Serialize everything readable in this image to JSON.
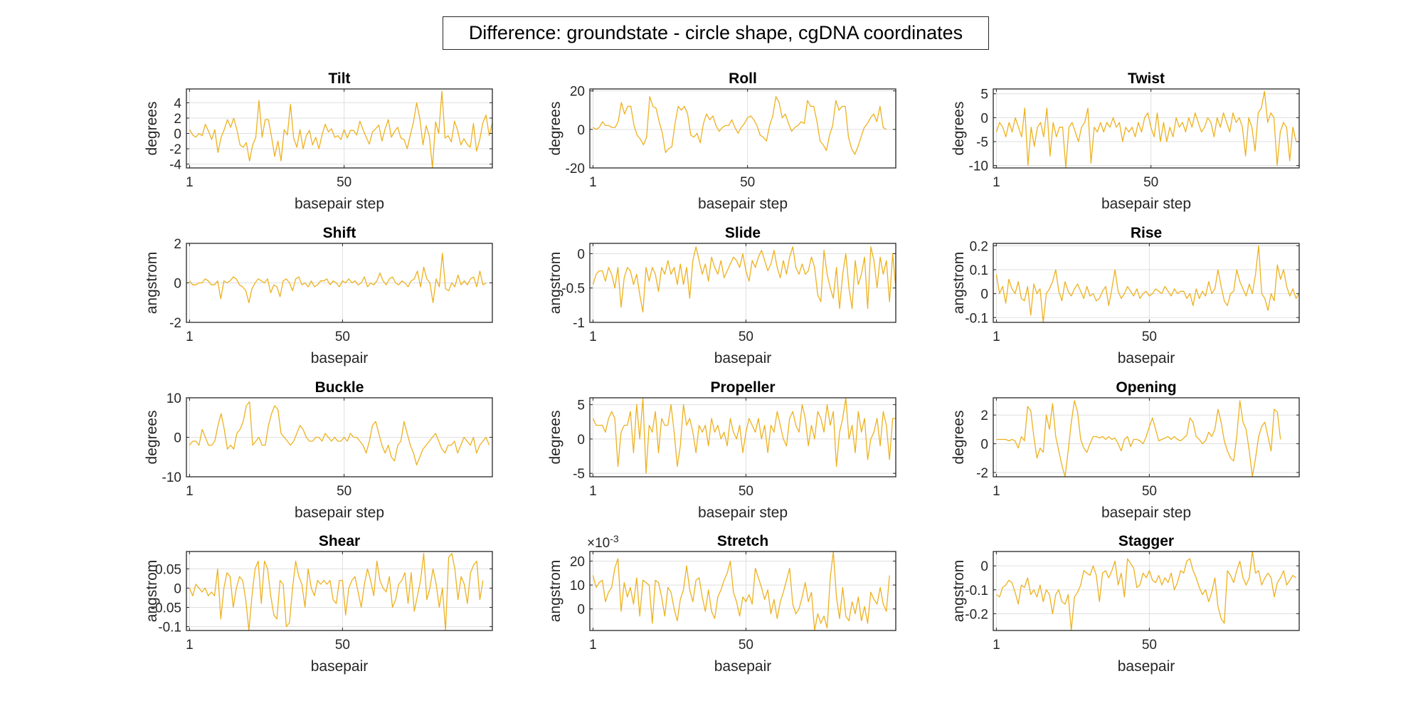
{
  "figure": {
    "title": "Difference: groundstate - circle shape, cgDNA coordinates",
    "line_color": "#EDB120",
    "grid_color": "#dfdfdf"
  },
  "chart_data": [
    {
      "type": "line",
      "title": "Tilt",
      "xlabel": "basepair step",
      "ylabel": "degrees",
      "xlim": [
        0,
        97
      ],
      "ylim": [
        -4.5,
        5.8
      ],
      "xticks": [
        "1",
        "50"
      ],
      "yticks": [
        "-4",
        "-2",
        "0",
        "2",
        "4"
      ],
      "y": [
        0.5,
        -0.2,
        -0.5,
        0.0,
        -0.3,
        1.2,
        0.3,
        -0.8,
        0.5,
        -2.5,
        -0.5,
        0.5,
        1.8,
        0.8,
        2.0,
        0.5,
        -1.5,
        -1.8,
        -1.2,
        -3.6,
        -1.5,
        -0.5,
        4.3,
        -0.5,
        1.8,
        1.8,
        -0.5,
        -3.0,
        -1.0,
        -3.6,
        0.5,
        -0.2,
        3.8,
        -0.6,
        -1.8,
        0.5,
        -2.0,
        -0.3,
        0.4,
        -1.5,
        -0.5,
        -2.0,
        -0.2,
        1.2,
        0.2,
        0.6,
        -0.5,
        -0.3,
        -0.8,
        0.5,
        -0.6,
        0.4,
        0.4,
        -0.2,
        1.6,
        0.5,
        -0.5,
        -1.4,
        0.2,
        0.6,
        1.1,
        -1.0,
        0.6,
        1.8,
        -0.5,
        0.3,
        0.8,
        -0.6,
        -0.8,
        -2.0,
        -0.2,
        1.5,
        4.0,
        2.0,
        -1.5,
        1.0,
        -0.3,
        -4.5,
        1.5,
        0.0,
        5.5,
        -0.6,
        -0.3,
        -1.1,
        1.6,
        0.4,
        -1.5,
        -0.7,
        -1.4,
        -1.8,
        1.3,
        -2.3,
        -0.8,
        1.4,
        2.4,
        -0.3,
        1.4
      ]
    },
    {
      "type": "line",
      "title": "Roll",
      "xlabel": "basepair step",
      "ylabel": "degrees",
      "xlim": [
        0,
        97
      ],
      "ylim": [
        -20,
        21
      ],
      "xticks": [
        "1",
        "50"
      ],
      "yticks": [
        "-20",
        "0",
        "20"
      ],
      "y": [
        1,
        0,
        1,
        4,
        2,
        2,
        1,
        1,
        4,
        14,
        8,
        12,
        12,
        2,
        -3,
        -5,
        -8,
        -4,
        17,
        12,
        11,
        4,
        -2,
        -12,
        -10,
        -9,
        3,
        12,
        10,
        12,
        8,
        -3,
        -4,
        -2,
        -7,
        3,
        8,
        5,
        7,
        2,
        -1,
        1,
        2,
        2,
        5,
        1,
        -2,
        1,
        3,
        6,
        7,
        5,
        2,
        -3,
        -4,
        -6,
        2,
        7,
        17,
        14,
        6,
        8,
        3,
        -1,
        1,
        2,
        4,
        3,
        15,
        12,
        12,
        4,
        -6,
        -8,
        -11,
        -3,
        2,
        15,
        10,
        12,
        12,
        -4,
        -10,
        -13,
        -9,
        -4,
        1,
        3,
        6,
        8,
        4,
        12,
        1,
        0
      ]
    },
    {
      "type": "line",
      "title": "Twist",
      "xlabel": "basepair step",
      "ylabel": "degrees",
      "xlim": [
        0,
        97
      ],
      "ylim": [
        -10.5,
        6.0
      ],
      "xticks": [
        "1",
        "50"
      ],
      "yticks": [
        "-10",
        "-5",
        "0",
        "5"
      ],
      "y": [
        -3,
        -1,
        -2,
        -4,
        -1,
        -3,
        0,
        -2,
        -4,
        2,
        -10,
        -2,
        -6,
        -2,
        -1,
        -4,
        2,
        -8,
        -1,
        -4,
        -2,
        -2,
        -10.5,
        -2,
        -1,
        -3,
        -5,
        -2,
        -1,
        2,
        -9.5,
        -2,
        -3,
        -1,
        -3,
        -1,
        -2,
        0,
        -2,
        -1,
        -5,
        -2,
        -3,
        -2,
        -4,
        -1,
        -3,
        0,
        1,
        -2,
        -4,
        1,
        -5,
        -1,
        -5,
        -2,
        -4,
        0,
        -2,
        -1,
        -3,
        0,
        -2,
        1,
        -1,
        -3,
        -2,
        0,
        -1,
        -4,
        0,
        -2,
        1,
        -1,
        -3,
        1,
        -1,
        0,
        -2,
        -8,
        0,
        -2,
        -7,
        1,
        2,
        5.5,
        -1,
        1,
        0,
        -10,
        -3,
        -1,
        -2,
        -9,
        -2,
        -5
      ]
    },
    {
      "type": "line",
      "title": "Shift",
      "xlabel": "basepair",
      "ylabel": "angstrom",
      "xlim": [
        0,
        98
      ],
      "ylim": [
        -2,
        2
      ],
      "xticks": [
        "1",
        "50"
      ],
      "yticks": [
        "-2",
        "0",
        "2"
      ],
      "y": [
        0.1,
        -0.1,
        -0.1,
        0.0,
        0.0,
        0.2,
        0.1,
        -0.1,
        -0.1,
        0.1,
        -0.8,
        0.1,
        0.0,
        0.1,
        0.3,
        0.2,
        -0.1,
        -0.2,
        -0.4,
        -1.0,
        -0.3,
        0.0,
        0.2,
        0.1,
        0.0,
        0.2,
        -0.5,
        -0.1,
        -0.2,
        -0.7,
        0.1,
        0.2,
        0.0,
        -0.4,
        0.2,
        0.3,
        -0.1,
        0.0,
        -0.2,
        0.1,
        -0.2,
        -0.1,
        0.1,
        0.1,
        0.2,
        -0.1,
        0.1,
        0.0,
        -0.2,
        0.1,
        0.0,
        0.2,
        0.0,
        0.1,
        -0.1,
        0.0,
        0.3,
        -0.2,
        0.0,
        -0.1,
        0.1,
        0.5,
        0.1,
        -0.1,
        0.2,
        0.3,
        0.0,
        -0.1,
        0.1,
        0.0,
        -0.2,
        0.1,
        0.2,
        0.6,
        -0.2,
        0.8,
        0.2,
        0.0,
        -1.0,
        0.2,
        -0.2,
        1.5,
        -0.3,
        -0.4,
        0.0,
        -0.2,
        0.4,
        -0.1,
        0.1,
        -0.1,
        0.2,
        0.3,
        -0.2,
        0.6,
        -0.1,
        0.0
      ]
    },
    {
      "type": "line",
      "title": "Slide",
      "xlabel": "basepair",
      "ylabel": "angstrom",
      "xlim": [
        0,
        98
      ],
      "ylim": [
        -1,
        0.15
      ],
      "xticks": [
        "1",
        "50"
      ],
      "yticks": [
        "-1",
        "-0.5",
        "0"
      ],
      "y": [
        -0.45,
        -0.3,
        -0.25,
        -0.25,
        -0.4,
        -0.2,
        -0.3,
        -0.5,
        -0.2,
        -0.78,
        -0.35,
        -0.2,
        -0.25,
        -0.45,
        -0.3,
        -0.6,
        -0.85,
        -0.2,
        -0.4,
        -0.2,
        -0.3,
        -0.55,
        -0.2,
        -0.3,
        -0.1,
        -0.3,
        -0.2,
        -0.45,
        -0.15,
        -0.45,
        -0.2,
        -0.65,
        -0.1,
        0.1,
        -0.1,
        -0.3,
        -0.15,
        -0.4,
        -0.05,
        -0.2,
        -0.3,
        -0.1,
        -0.35,
        -0.25,
        -0.15,
        -0.05,
        -0.1,
        -0.2,
        0.0,
        -0.25,
        -0.4,
        -0.1,
        -0.2,
        -0.05,
        0.05,
        -0.1,
        -0.25,
        -0.15,
        0.05,
        -0.2,
        -0.35,
        -0.1,
        -0.3,
        -0.05,
        0.1,
        -0.2,
        -0.3,
        -0.15,
        -0.3,
        -0.25,
        -0.05,
        -0.2,
        -0.6,
        -0.7,
        0.05,
        -0.3,
        -0.5,
        -0.65,
        -0.2,
        -0.8,
        -0.3,
        0.0,
        -0.5,
        -0.8,
        -0.1,
        -0.45,
        -0.3,
        -0.05,
        -0.8,
        0.1,
        -0.1,
        -0.5,
        -0.05,
        -0.3,
        -0.1,
        -0.7,
        0.0,
        -0.5
      ]
    },
    {
      "type": "line",
      "title": "Rise",
      "xlabel": "basepair",
      "ylabel": "angstrom",
      "xlim": [
        0,
        98
      ],
      "ylim": [
        -0.12,
        0.21
      ],
      "xticks": [
        "1",
        "50"
      ],
      "yticks": [
        "-0.1",
        "0",
        "0.1",
        "0.2"
      ],
      "y": [
        0.08,
        0.0,
        0.03,
        -0.04,
        0.06,
        0.02,
        0.0,
        0.05,
        -0.02,
        -0.03,
        0.03,
        -0.09,
        0.04,
        0.0,
        0.02,
        -0.12,
        0.0,
        0.02,
        0.05,
        0.1,
        0.01,
        -0.03,
        0.05,
        0.01,
        -0.01,
        0.02,
        0.04,
        0.01,
        -0.02,
        0.03,
        -0.01,
        0.0,
        -0.03,
        -0.02,
        0.01,
        0.03,
        -0.05,
        0.02,
        0.1,
        0.01,
        -0.02,
        0.0,
        0.03,
        0.01,
        -0.01,
        0.02,
        -0.02,
        0.0,
        0.01,
        -0.01,
        0.0,
        0.02,
        0.01,
        0.0,
        0.03,
        0.01,
        -0.01,
        0.02,
        0.0,
        0.01,
        0.01,
        -0.02,
        0.0,
        -0.05,
        0.02,
        -0.02,
        0.01,
        -0.01,
        0.05,
        0.0,
        0.02,
        0.1,
        0.03,
        -0.03,
        -0.05,
        0.0,
        0.01,
        0.1,
        0.05,
        0.02,
        -0.01,
        0.04,
        0.0,
        0.08,
        0.2,
        0.0,
        -0.02,
        -0.07,
        0.0,
        -0.03,
        0.12,
        0.06,
        0.1,
        0.03,
        -0.01,
        0.02,
        -0.02,
        0.0
      ]
    },
    {
      "type": "line",
      "title": "Buckle",
      "xlabel": "basepair step",
      "ylabel": "degrees",
      "xlim": [
        0,
        97
      ],
      "ylim": [
        -10,
        10
      ],
      "xticks": [
        "1",
        "50"
      ],
      "yticks": [
        "-10",
        "0",
        "10"
      ],
      "y": [
        -2,
        -1,
        -1,
        -2,
        2,
        0,
        -2,
        -2,
        -1,
        3,
        6,
        2,
        -3,
        -2,
        -3,
        1,
        2,
        4,
        8,
        9,
        -2,
        -1,
        0,
        -2,
        -2,
        3,
        6,
        8,
        7,
        1,
        0,
        -1,
        -2,
        -1,
        1,
        3,
        2,
        0,
        -1,
        -1,
        0,
        0,
        -1,
        1,
        0,
        -1,
        0,
        -1,
        -1,
        0,
        -1,
        1,
        0,
        0,
        -1,
        -2,
        -4,
        -1,
        3,
        4,
        1,
        -2,
        -4,
        -2,
        -5,
        -6,
        -2,
        -1,
        4,
        1,
        -2,
        -4,
        -7,
        -5,
        -3,
        -2,
        -1,
        0,
        1,
        -1,
        -3,
        -4,
        -2,
        -2,
        -1,
        -4,
        -2,
        0,
        -1,
        -2,
        0,
        -4,
        -2,
        -1,
        0,
        -2
      ]
    },
    {
      "type": "line",
      "title": "Propeller",
      "xlabel": "basepair step",
      "ylabel": "degrees",
      "xlim": [
        0,
        98
      ],
      "ylim": [
        -5.5,
        6
      ],
      "xticks": [
        "1",
        "50"
      ],
      "yticks": [
        "-5",
        "0",
        "5"
      ],
      "y": [
        3,
        2,
        2,
        2,
        1,
        3,
        4,
        3,
        -4,
        1,
        2,
        2,
        4,
        -2,
        5,
        0,
        6,
        -5,
        2,
        1,
        4,
        -2,
        3,
        2,
        2,
        5,
        1,
        -4,
        -1,
        5,
        2,
        3,
        1,
        -2,
        2,
        1,
        2,
        -1,
        3,
        1,
        2,
        0,
        1,
        -1,
        3,
        1,
        0,
        2,
        -2,
        1,
        3,
        2,
        1,
        3,
        0,
        2,
        -2,
        2,
        1,
        4,
        2,
        0,
        -1,
        3,
        4,
        2,
        1,
        5,
        3,
        -1,
        2,
        0,
        4,
        3,
        1,
        5,
        2,
        4,
        -4,
        1,
        3,
        6,
        0,
        2,
        -2,
        4,
        1,
        3,
        -3,
        0,
        1,
        3,
        -1,
        4,
        2,
        -3,
        3,
        3
      ]
    },
    {
      "type": "line",
      "title": "Opening",
      "xlabel": "basepair step",
      "ylabel": "degrees",
      "xlim": [
        0,
        98
      ],
      "ylim": [
        -2.3,
        3.2
      ],
      "xticks": [
        "1",
        "50"
      ],
      "yticks": [
        "-2",
        "0",
        "2"
      ],
      "y": [
        0.3,
        0.3,
        0.3,
        0.3,
        0.2,
        0.3,
        0.2,
        -0.3,
        0.5,
        0.2,
        2.6,
        2.3,
        0.5,
        -1.0,
        -0.3,
        -0.6,
        2.0,
        1.0,
        2.8,
        0.5,
        -0.5,
        -1.5,
        -2.3,
        -0.5,
        1.5,
        3.0,
        2.2,
        0.3,
        -0.3,
        -0.6,
        0.0,
        0.5,
        0.5,
        0.4,
        0.5,
        0.3,
        0.5,
        0.3,
        0.4,
        0.0,
        -0.5,
        0.3,
        0.5,
        -0.2,
        0.3,
        0.3,
        0.2,
        0.0,
        0.5,
        1.2,
        1.8,
        1.0,
        0.2,
        0.3,
        0.4,
        0.5,
        0.3,
        0.5,
        0.3,
        0.2,
        0.4,
        0.6,
        1.8,
        1.5,
        0.5,
        0.3,
        0.0,
        0.2,
        0.8,
        0.5,
        1.0,
        2.4,
        1.5,
        0.2,
        -0.5,
        -1.0,
        -1.2,
        0.5,
        3.0,
        1.5,
        1.0,
        -0.5,
        -2.3,
        -1.0,
        0.5,
        1.2,
        1.5,
        0.5,
        -0.5,
        2.4,
        2.2,
        0.3
      ]
    },
    {
      "type": "line",
      "title": "Shear",
      "xlabel": "basepair",
      "ylabel": "angstrom",
      "xlim": [
        0,
        98
      ],
      "ylim": [
        -0.11,
        0.095
      ],
      "xticks": [
        "1",
        "50"
      ],
      "yticks": [
        "-0.1",
        "-0.05",
        "0",
        "0.05"
      ],
      "y": [
        0.0,
        -0.02,
        0.01,
        0.0,
        -0.01,
        0.0,
        -0.02,
        -0.01,
        -0.02,
        0.05,
        -0.08,
        0.0,
        0.04,
        0.03,
        -0.05,
        0.0,
        0.03,
        0.02,
        -0.03,
        -0.11,
        -0.02,
        0.05,
        0.07,
        -0.04,
        0.07,
        0.05,
        -0.02,
        -0.07,
        -0.08,
        0.02,
        0.01,
        -0.1,
        -0.09,
        0.0,
        0.07,
        0.03,
        0.01,
        -0.05,
        0.05,
        0.0,
        -0.02,
        0.02,
        0.01,
        0.02,
        0.01,
        0.02,
        -0.03,
        -0.04,
        0.02,
        0.02,
        -0.07,
        0.0,
        0.02,
        0.03,
        -0.01,
        -0.05,
        0.01,
        0.05,
        0.02,
        -0.02,
        0.07,
        0.02,
        0.0,
        -0.01,
        0.03,
        -0.05,
        -0.03,
        0.01,
        0.02,
        0.04,
        -0.04,
        0.04,
        -0.06,
        -0.02,
        0.02,
        0.09,
        -0.03,
        0.0,
        0.05,
        0.01,
        -0.05,
        0.0,
        -0.11,
        0.08,
        0.09,
        0.05,
        -0.03,
        0.03,
        0.01,
        -0.04,
        0.04,
        0.06,
        0.07,
        -0.03,
        0.02
      ]
    },
    {
      "type": "line",
      "title": "Stretch",
      "xlabel": "basepair",
      "ylabel": "angstrom",
      "multiplier": "×10",
      "multiplier_exp": "-3",
      "xlim": [
        0,
        98
      ],
      "ylim": [
        -9,
        24
      ],
      "xticks": [
        "1",
        "50"
      ],
      "yticks": [
        "0",
        "10",
        "20"
      ],
      "y": [
        14,
        9,
        11,
        12,
        3,
        7,
        9,
        17,
        21,
        -1,
        11,
        5,
        9,
        2,
        13,
        -3,
        12,
        11,
        10,
        -6,
        12,
        11,
        5,
        -3,
        9,
        7,
        0,
        -5,
        4,
        8,
        18,
        8,
        3,
        12,
        13,
        5,
        -1,
        8,
        -1,
        -4,
        5,
        8,
        12,
        15,
        20,
        7,
        3,
        -3,
        5,
        3,
        6,
        2,
        17,
        13,
        9,
        4,
        8,
        -2,
        4,
        -4,
        3,
        7,
        12,
        17,
        2,
        -2,
        0,
        5,
        11,
        3,
        7,
        -9,
        -2,
        -6,
        -3,
        -8,
        13,
        24,
        5,
        -4,
        9,
        -3,
        -5,
        3,
        -2,
        5,
        -5,
        1,
        -6,
        7,
        4,
        2,
        9,
        2,
        -1,
        14
      ]
    },
    {
      "type": "line",
      "title": "Stagger",
      "xlabel": "basepair",
      "ylabel": "angstrom",
      "xlim": [
        0,
        98
      ],
      "ylim": [
        -0.27,
        0.06
      ],
      "xticks": [
        "1",
        "50"
      ],
      "yticks": [
        "-0.2",
        "-0.1",
        "0"
      ],
      "y": [
        -0.12,
        -0.13,
        -0.09,
        -0.08,
        -0.06,
        -0.07,
        -0.11,
        -0.16,
        -0.08,
        -0.09,
        -0.05,
        -0.12,
        -0.1,
        -0.13,
        -0.08,
        -0.15,
        -0.1,
        -0.12,
        -0.2,
        -0.12,
        -0.1,
        -0.15,
        -0.16,
        -0.12,
        -0.27,
        -0.13,
        -0.11,
        -0.08,
        -0.02,
        -0.03,
        -0.04,
        0.0,
        -0.04,
        -0.15,
        -0.03,
        -0.02,
        -0.05,
        -0.02,
        0.02,
        -0.08,
        -0.03,
        -0.13,
        0.03,
        0.01,
        -0.01,
        -0.09,
        -0.08,
        -0.03,
        -0.05,
        -0.02,
        -0.06,
        -0.07,
        -0.04,
        -0.08,
        -0.05,
        -0.07,
        -0.03,
        -0.1,
        -0.07,
        -0.02,
        -0.03,
        0.02,
        0.03,
        -0.02,
        -0.05,
        -0.09,
        -0.12,
        -0.1,
        -0.15,
        -0.11,
        -0.05,
        -0.17,
        -0.22,
        -0.24,
        -0.02,
        -0.04,
        -0.07,
        -0.02,
        0.02,
        -0.05,
        -0.08,
        -0.05,
        0.06,
        -0.03,
        -0.02,
        -0.08,
        -0.05,
        -0.03,
        -0.05,
        -0.13,
        -0.07,
        -0.05,
        -0.02,
        -0.08,
        -0.06,
        -0.04,
        -0.05
      ]
    }
  ]
}
